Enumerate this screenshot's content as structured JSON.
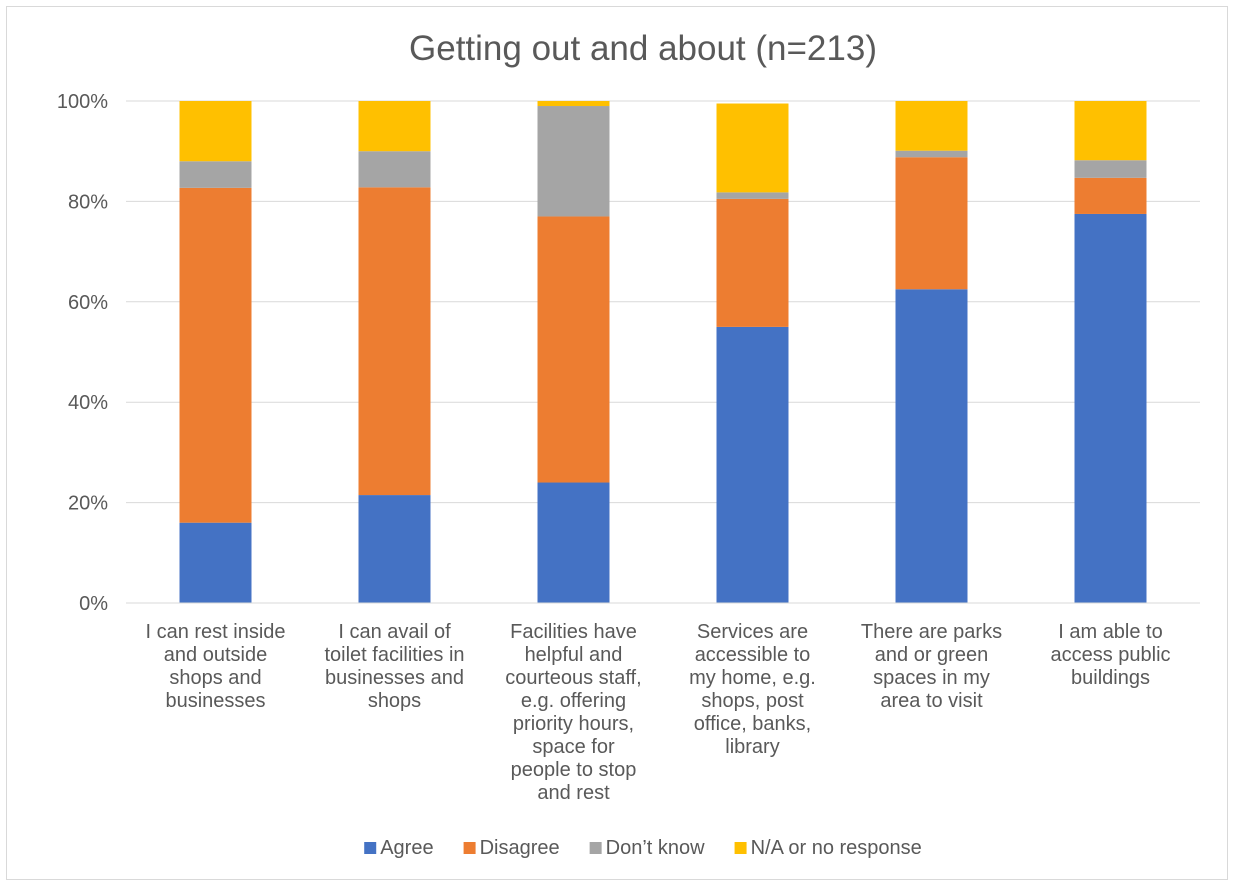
{
  "chart_data": {
    "type": "bar",
    "stacked": true,
    "title": "Getting out and about (n=213)",
    "xlabel": "",
    "ylabel": "",
    "ylim": [
      0,
      100
    ],
    "yticks": [
      "0%",
      "20%",
      "40%",
      "60%",
      "80%",
      "100%"
    ],
    "grid": true,
    "legend_position": "bottom",
    "categories": [
      [
        "I can rest inside",
        "and outside",
        "shops and",
        "businesses"
      ],
      [
        "I can avail of",
        "toilet facilities in",
        "businesses and",
        "shops"
      ],
      [
        "Facilities have",
        "helpful and",
        "courteous staff,",
        "e.g. offering",
        "priority hours,",
        "space for",
        "people to stop",
        "and rest"
      ],
      [
        "Services are",
        "accessible to",
        "my home, e.g.",
        "shops, post",
        "office, banks,",
        "library"
      ],
      [
        "There are parks",
        "and or green",
        "spaces in my",
        "area to visit"
      ],
      [
        "I am able to",
        "access public",
        "buildings"
      ]
    ],
    "series": [
      {
        "name": "Agree",
        "color": "#4472c4",
        "values": [
          16,
          21.5,
          24,
          55,
          62.5,
          77.5
        ]
      },
      {
        "name": "Disagree",
        "color": "#ed7d31",
        "values": [
          66.7,
          61.3,
          53,
          25.5,
          26.3,
          7.2
        ]
      },
      {
        "name": "Don’t know",
        "color": "#a5a5a5",
        "values": [
          5.3,
          7.2,
          22,
          1.3,
          1.3,
          3.5
        ]
      },
      {
        "name": "N/A or no response",
        "color": "#ffc000",
        "values": [
          12,
          10,
          1,
          17.7,
          9.9,
          11.8
        ]
      }
    ]
  }
}
